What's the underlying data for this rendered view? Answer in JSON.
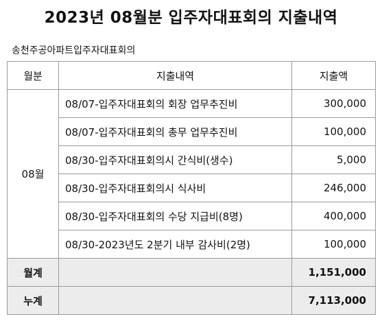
{
  "title": "2023년 08월분 입주자대표회의 지출내역",
  "organization": "송천주공아파트입주자대표회의",
  "table": {
    "headers": {
      "month": "월분",
      "description": "지출내역",
      "amount": "지출액"
    },
    "month_label": "08월",
    "rows": [
      {
        "description": "08/07-입주자대표회의 회장 업무추진비",
        "amount": "300,000"
      },
      {
        "description": "08/07-입주자대표회의 총무 업무추진비",
        "amount": "100,000"
      },
      {
        "description": "08/30-입주자대표회의시 간식비(생수)",
        "amount": "5,000"
      },
      {
        "description": "08/30-입주자대표회의시 식사비",
        "amount": "246,000"
      },
      {
        "description": "08/30-입주자대표회의 수당 지급비(8명)",
        "amount": "400,000"
      },
      {
        "description": "08/30-2023년도 2분기 내부 감사비(2명)",
        "amount": "100,000"
      }
    ],
    "monthly_total": {
      "label": "월계",
      "description": "",
      "amount": "1,151,000"
    },
    "cumulative_total": {
      "label": "누계",
      "description": "",
      "amount": "7,113,000"
    }
  }
}
